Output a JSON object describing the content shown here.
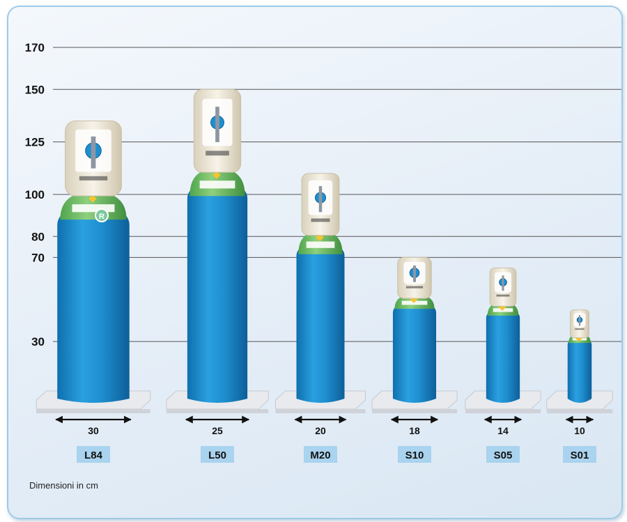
{
  "chart_data": {
    "type": "bar",
    "title": "",
    "xlabel": "",
    "ylabel": "",
    "categories": [
      "L84",
      "L50",
      "M20",
      "S10",
      "S05",
      "S01"
    ],
    "series": [
      {
        "values": [
          135,
          150,
          110,
          70,
          65,
          45
        ]
      }
    ],
    "widths": [
      30,
      25,
      20,
      18,
      14,
      10
    ],
    "y_ticks": [
      30,
      70,
      80,
      100,
      125,
      150,
      170
    ],
    "ylim": [
      0,
      170
    ],
    "grid": true,
    "colors": {
      "body": "#1e8fd0",
      "shoulder": "#6fbf6a",
      "cap": "#efe9d8",
      "label_box": "#a9d3ee",
      "grid": "#555555"
    }
  },
  "cylinder_badge": "R",
  "footnote": "Dimensioni in cm"
}
